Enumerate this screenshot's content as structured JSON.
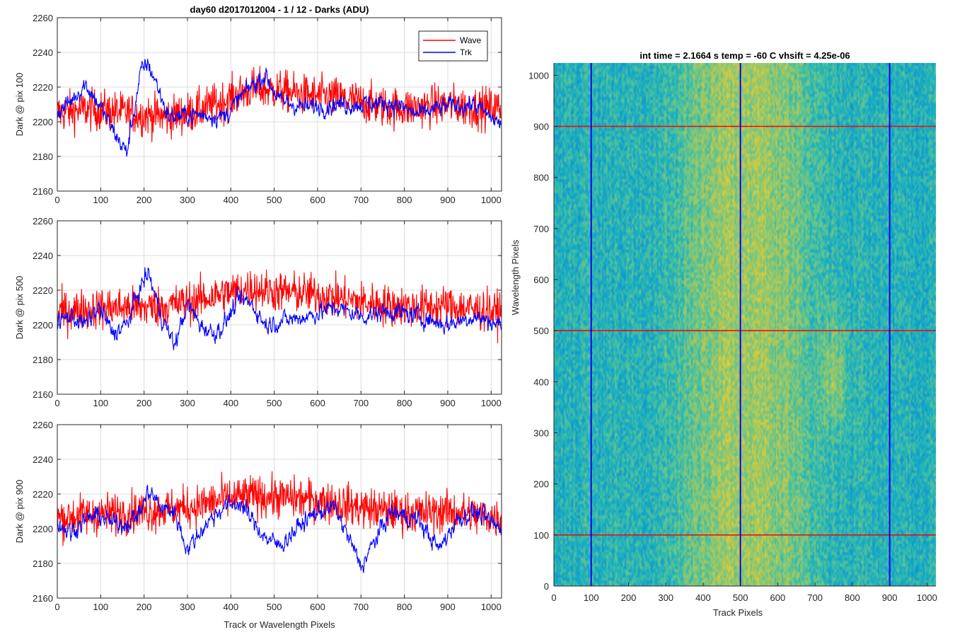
{
  "figure_title": "day60 d2017012004 - 1 / 12 - Darks (ADU)",
  "legend": [
    {
      "name": "Wave",
      "color": "#ff0000"
    },
    {
      "name": "Trk",
      "color": "#0000ff"
    }
  ],
  "colors": {
    "wave": "#ff0000",
    "trk": "#0000ff",
    "grid": "#dcdcdc"
  },
  "chart_data": [
    {
      "type": "line",
      "ylabel": "Dark @ pix 100",
      "xlabel": "",
      "xlim": [
        0,
        1024
      ],
      "ylim": [
        2160,
        2260
      ],
      "xticks": [
        0,
        100,
        200,
        300,
        400,
        500,
        600,
        700,
        800,
        900,
        1000
      ],
      "yticks": [
        2160,
        2180,
        2200,
        2220,
        2240,
        2260
      ],
      "grid": true,
      "legend_position": "top-right",
      "series": [
        {
          "name": "Wave",
          "x": [
            0,
            64,
            128,
            192,
            256,
            320,
            384,
            448,
            512,
            576,
            640,
            704,
            768,
            832,
            896,
            960,
            1023
          ],
          "values": [
            2205,
            2207,
            2206,
            2204,
            2203,
            2206,
            2212,
            2219,
            2218,
            2215,
            2214,
            2211,
            2208,
            2208,
            2210,
            2208,
            2208
          ]
        },
        {
          "name": "Trk",
          "x": [
            0,
            32,
            64,
            96,
            128,
            160,
            192,
            208,
            224,
            256,
            320,
            384,
            448,
            480,
            512,
            576,
            640,
            704,
            768,
            832,
            896,
            960,
            1023
          ],
          "values": [
            2205,
            2212,
            2222,
            2210,
            2195,
            2182,
            2228,
            2234,
            2225,
            2203,
            2204,
            2203,
            2221,
            2227,
            2212,
            2208,
            2210,
            2210,
            2211,
            2204,
            2209,
            2210,
            2198
          ]
        }
      ]
    },
    {
      "type": "line",
      "ylabel": "Dark @ pix 500",
      "xlabel": "",
      "xlim": [
        0,
        1024
      ],
      "ylim": [
        2160,
        2260
      ],
      "xticks": [
        0,
        100,
        200,
        300,
        400,
        500,
        600,
        700,
        800,
        900,
        1000
      ],
      "yticks": [
        2160,
        2180,
        2200,
        2220,
        2240,
        2260
      ],
      "grid": true,
      "series": [
        {
          "name": "Wave",
          "x": [
            0,
            64,
            128,
            192,
            256,
            320,
            384,
            448,
            512,
            576,
            640,
            704,
            768,
            832,
            896,
            960,
            1023
          ],
          "values": [
            2207,
            2209,
            2210,
            2210,
            2211,
            2214,
            2218,
            2221,
            2219,
            2218,
            2216,
            2213,
            2211,
            2210,
            2211,
            2209,
            2207
          ]
        },
        {
          "name": "Trk",
          "x": [
            0,
            32,
            64,
            96,
            128,
            160,
            192,
            210,
            240,
            270,
            300,
            330,
            360,
            384,
            420,
            448,
            480,
            512,
            576,
            640,
            704,
            768,
            832,
            896,
            960,
            1023
          ],
          "values": [
            2202,
            2205,
            2200,
            2210,
            2195,
            2200,
            2222,
            2230,
            2205,
            2188,
            2212,
            2200,
            2195,
            2200,
            2215,
            2212,
            2200,
            2202,
            2205,
            2210,
            2205,
            2208,
            2205,
            2200,
            2205,
            2200
          ]
        }
      ]
    },
    {
      "type": "line",
      "ylabel": "Dark @ pix 900",
      "xlabel": "Track or Wavelength Pixels",
      "xlim": [
        0,
        1024
      ],
      "ylim": [
        2160,
        2260
      ],
      "xticks": [
        0,
        100,
        200,
        300,
        400,
        500,
        600,
        700,
        800,
        900,
        1000
      ],
      "yticks": [
        2160,
        2180,
        2200,
        2220,
        2240,
        2260
      ],
      "grid": true,
      "series": [
        {
          "name": "Wave",
          "x": [
            0,
            64,
            128,
            192,
            256,
            320,
            384,
            448,
            512,
            576,
            640,
            704,
            768,
            832,
            896,
            960,
            1023
          ],
          "values": [
            2206,
            2208,
            2209,
            2210,
            2211,
            2213,
            2217,
            2219,
            2218,
            2217,
            2215,
            2212,
            2210,
            2209,
            2210,
            2208,
            2206
          ]
        },
        {
          "name": "Trk",
          "x": [
            0,
            32,
            64,
            96,
            128,
            160,
            192,
            210,
            240,
            270,
            300,
            340,
            380,
            420,
            448,
            480,
            512,
            560,
            600,
            640,
            680,
            700,
            730,
            768,
            832,
            880,
            920,
            960,
            1023
          ],
          "values": [
            2203,
            2198,
            2205,
            2208,
            2203,
            2203,
            2210,
            2222,
            2212,
            2210,
            2188,
            2202,
            2212,
            2215,
            2205,
            2195,
            2190,
            2202,
            2210,
            2212,
            2190,
            2178,
            2192,
            2210,
            2205,
            2188,
            2205,
            2210,
            2200
          ]
        }
      ]
    },
    {
      "type": "heatmap",
      "title": "int time = 2.1664 s   temp = -60 C   vhsift = 4.25e-06",
      "xlabel": "Track Pixels",
      "ylabel": "Wavelength Pixels",
      "xlim": [
        0,
        1024
      ],
      "ylim": [
        0,
        1024
      ],
      "xticks": [
        0,
        100,
        200,
        300,
        400,
        500,
        600,
        700,
        800,
        900,
        1000
      ],
      "yticks": [
        0,
        100,
        200,
        300,
        400,
        500,
        600,
        700,
        800,
        900,
        1000
      ],
      "grid": false,
      "colormap": "parula",
      "vertical_lines": {
        "x": [
          100,
          500,
          900
        ],
        "color": "#0000ff"
      },
      "horizontal_lines": {
        "y": [
          100,
          500,
          900
        ],
        "color": "#ff0000"
      }
    }
  ]
}
